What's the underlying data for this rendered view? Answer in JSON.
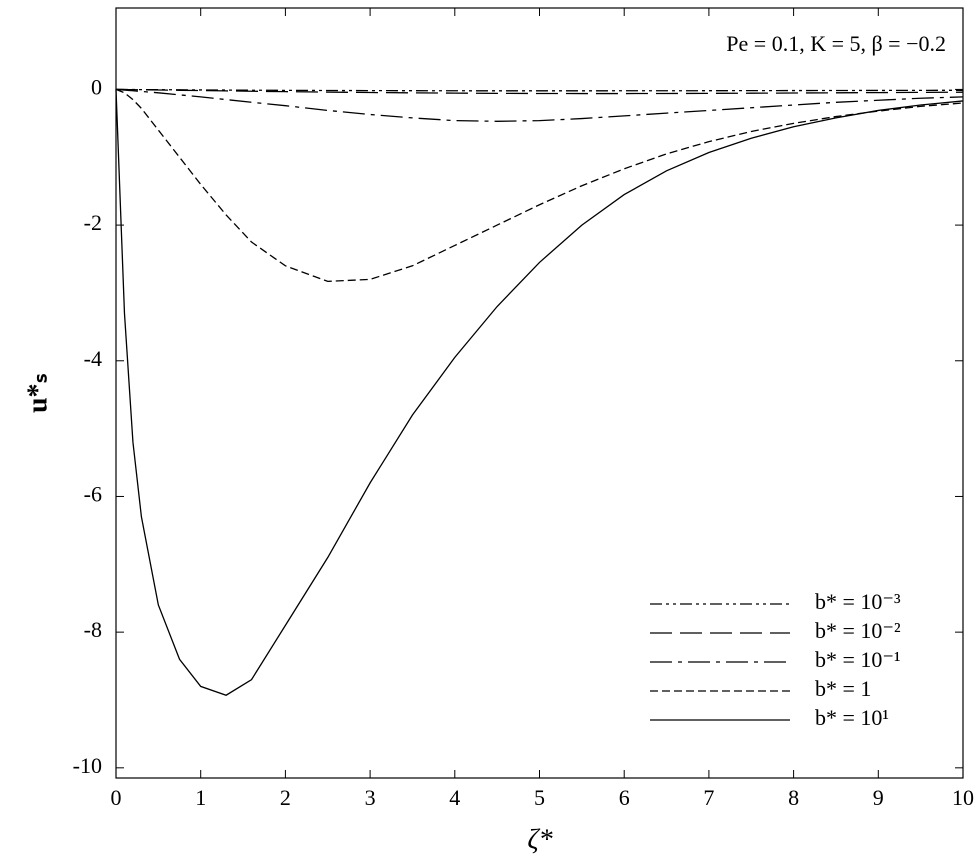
{
  "chart_data": {
    "type": "line",
    "annotation": "Pe = 0.1, K = 5, β = −0.2",
    "x_label": "ζ*",
    "y_label": "u*ₛ",
    "x": [
      0,
      0.1,
      0.2,
      0.3,
      0.5,
      0.75,
      1,
      1.3,
      1.6,
      2,
      2.5,
      3,
      3.5,
      4,
      4.5,
      5,
      5.5,
      6,
      6.5,
      7,
      7.5,
      8,
      8.5,
      9,
      9.5,
      10
    ],
    "series": [
      {
        "name": "b* = 10⁻³",
        "color": "#000000",
        "dash": "12,4,3,4,3,4",
        "values": [
          0,
          -0.001,
          -0.002,
          -0.003,
          -0.004,
          -0.006,
          -0.008,
          -0.01,
          -0.012,
          -0.014,
          -0.016,
          -0.018,
          -0.019,
          -0.02,
          -0.021,
          -0.021,
          -0.021,
          -0.02,
          -0.02,
          -0.019,
          -0.018,
          -0.017,
          -0.016,
          -0.015,
          -0.014,
          -0.013
        ]
      },
      {
        "name": "b* = 10⁻²",
        "color": "#000000",
        "dash": "22,8",
        "values": [
          0,
          -0.002,
          -0.004,
          -0.006,
          -0.009,
          -0.013,
          -0.017,
          -0.022,
          -0.027,
          -0.033,
          -0.04,
          -0.046,
          -0.051,
          -0.055,
          -0.058,
          -0.06,
          -0.061,
          -0.061,
          -0.06,
          -0.058,
          -0.056,
          -0.053,
          -0.05,
          -0.047,
          -0.044,
          -0.041
        ]
      },
      {
        "name": "b* = 10⁻¹",
        "color": "#000000",
        "dash": "22,6,4,6",
        "values": [
          0,
          -0.01,
          -0.02,
          -0.03,
          -0.05,
          -0.08,
          -0.11,
          -0.15,
          -0.19,
          -0.24,
          -0.31,
          -0.37,
          -0.42,
          -0.46,
          -0.47,
          -0.46,
          -0.43,
          -0.39,
          -0.35,
          -0.31,
          -0.27,
          -0.23,
          -0.19,
          -0.16,
          -0.13,
          -0.11
        ]
      },
      {
        "name": "b* = 1",
        "color": "#000000",
        "dash": "8,4",
        "values": [
          0,
          -0.05,
          -0.15,
          -0.28,
          -0.6,
          -1.0,
          -1.4,
          -1.85,
          -2.25,
          -2.6,
          -2.83,
          -2.8,
          -2.6,
          -2.3,
          -2.0,
          -1.7,
          -1.42,
          -1.17,
          -0.95,
          -0.77,
          -0.62,
          -0.5,
          -0.4,
          -0.32,
          -0.25,
          -0.2
        ]
      },
      {
        "name": "b* = 10¹",
        "color": "#000000",
        "dash": "none",
        "values": [
          0,
          -3.3,
          -5.2,
          -6.3,
          -7.6,
          -8.4,
          -8.8,
          -8.93,
          -8.7,
          -7.9,
          -6.9,
          -5.8,
          -4.8,
          -3.95,
          -3.2,
          -2.55,
          -2.0,
          -1.55,
          -1.2,
          -0.93,
          -0.72,
          -0.55,
          -0.42,
          -0.31,
          -0.23,
          -0.17
        ]
      }
    ],
    "xlim": [
      0,
      10
    ],
    "ylim": [
      -10.15,
      1.2
    ],
    "xticks": [
      0,
      1,
      2,
      3,
      4,
      5,
      6,
      7,
      8,
      9,
      10
    ],
    "yticks": [
      -10,
      -8,
      -6,
      -4,
      -2,
      0
    ],
    "grid": false,
    "legend": "lower right"
  }
}
